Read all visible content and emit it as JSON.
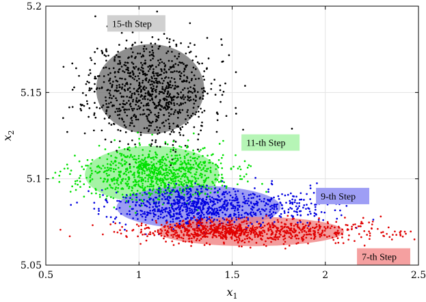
{
  "chart_data": {
    "type": "scatter",
    "title": "",
    "xlabel": "x",
    "xlabel_sub": "1",
    "ylabel": "x",
    "ylabel_sub": "2",
    "xlim": [
      0.5,
      2.5
    ],
    "ylim": [
      5.05,
      5.2
    ],
    "xticks": [
      "0.5",
      "1",
      "1.5",
      "2",
      "2.5"
    ],
    "yticks": [
      "5.05",
      "5.1",
      "5.15",
      "5.2"
    ],
    "xtick_values": [
      0.5,
      1.0,
      1.5,
      2.0,
      2.5
    ],
    "ytick_values": [
      5.05,
      5.1,
      5.15,
      5.2
    ],
    "grid": true,
    "series": [
      {
        "label": "15-th Step",
        "color": "#000000",
        "ellipse_color": "#6e6e6e",
        "label_bg": "#d0d0d0",
        "center": [
          1.06,
          5.152
        ],
        "spread": [
          0.165,
          0.0145
        ],
        "ellipse": {
          "cx": 1.06,
          "cy": 5.152,
          "rx": 0.29,
          "ry": 0.026
        },
        "label_anchor": [
          0.83,
          5.19
        ],
        "count": 900,
        "seed": 11
      },
      {
        "label": "11-th Step",
        "color": "#00e000",
        "ellipse_color": "#8cf08c",
        "label_bg": "#b6f5b6",
        "center": [
          1.08,
          5.1025
        ],
        "spread": [
          0.2,
          0.0075
        ],
        "ellipse": {
          "cx": 1.07,
          "cy": 5.1025,
          "rx": 0.36,
          "ry": 0.0165
        },
        "label_anchor": [
          1.55,
          5.121
        ],
        "count": 900,
        "seed": 23
      },
      {
        "label": "9-th Step",
        "color": "#0000e0",
        "ellipse_color": "#8080f0",
        "label_bg": "#9e9ef5",
        "center": [
          1.35,
          5.084
        ],
        "spread": [
          0.22,
          0.0055
        ],
        "ellipse": {
          "cx": 1.32,
          "cy": 5.0835,
          "rx": 0.44,
          "ry": 0.0125
        },
        "label_anchor": [
          1.95,
          5.09
        ],
        "count": 900,
        "seed": 37
      },
      {
        "label": "7-th Step",
        "color": "#e00000",
        "ellipse_color": "#f08080",
        "label_bg": "#f5a0a0",
        "center": [
          1.55,
          5.0695
        ],
        "spread": [
          0.28,
          0.0033
        ],
        "ellipse": {
          "cx": 1.6,
          "cy": 5.0695,
          "rx": 0.5,
          "ry": 0.0085
        },
        "label_anchor": [
          2.17,
          5.055
        ],
        "count": 900,
        "seed": 53
      }
    ]
  }
}
